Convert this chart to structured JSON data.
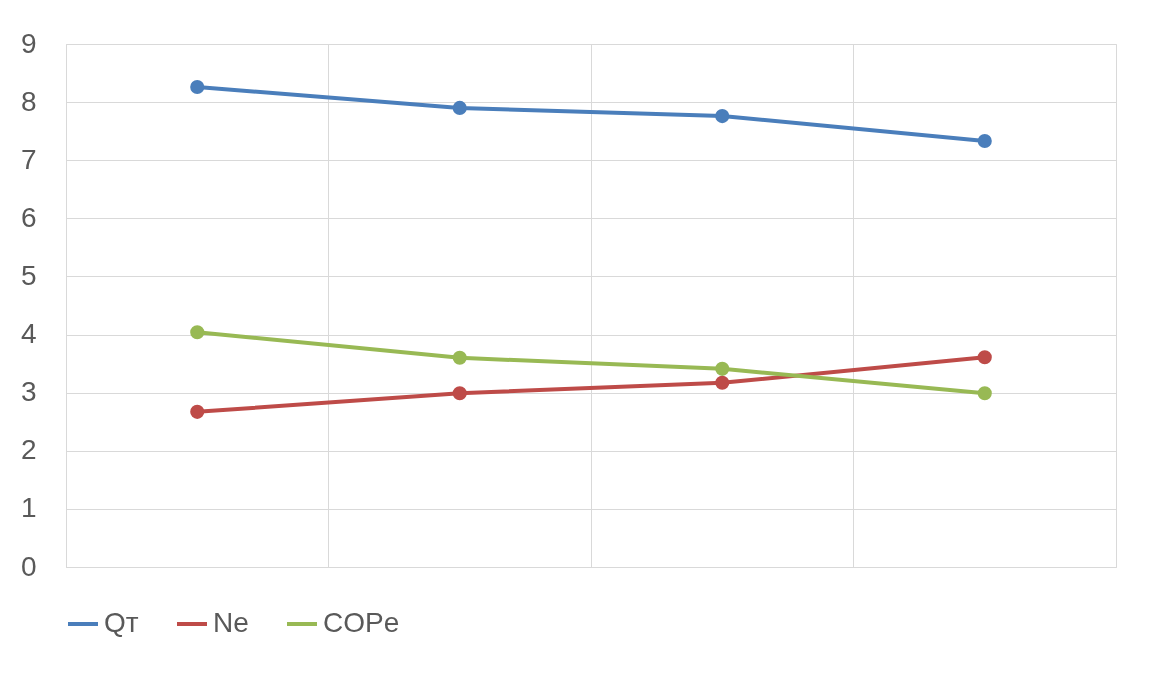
{
  "chart_data": {
    "type": "line",
    "categories": [
      null,
      null,
      null,
      null
    ],
    "ylim": [
      0,
      9
    ],
    "yticks": [
      0,
      1,
      2,
      3,
      4,
      5,
      6,
      7,
      8,
      9
    ],
    "tick_labels": "y",
    "grid": true,
    "legend": "bottom",
    "marker": "circle",
    "line_style": "solid",
    "series": [
      {
        "name": "Qт",
        "color": "#4a7ebb",
        "values": [
          8.26,
          7.9,
          7.76,
          7.33
        ]
      },
      {
        "name": "Ne",
        "color": "#be4b48",
        "values": [
          2.67,
          2.99,
          3.17,
          3.61
        ]
      },
      {
        "name": "COPe",
        "color": "#98b954",
        "values": [
          4.04,
          3.6,
          3.41,
          2.99
        ]
      }
    ]
  }
}
